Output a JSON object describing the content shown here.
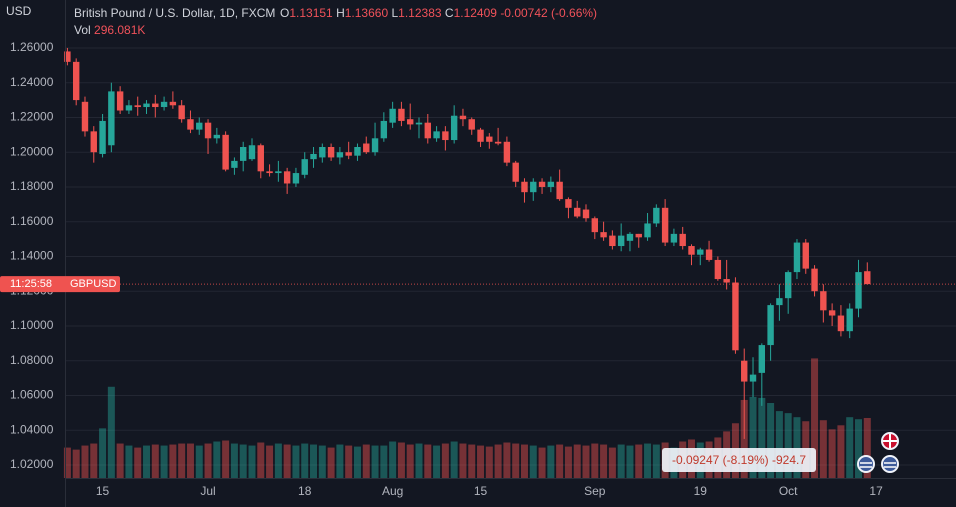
{
  "chart_data": {
    "type": "candlestick",
    "currency": "USD",
    "title": "British Pound / U.S. Dollar, 1D, FXCM",
    "ohlc_legend": [
      {
        "key": "O",
        "value": "1.13151"
      },
      {
        "key": "H",
        "value": "1.13660"
      },
      {
        "key": "L",
        "value": "1.12383"
      },
      {
        "key": "C",
        "value": "1.12409"
      }
    ],
    "change": "-0.00742 (-0.66%)",
    "volume_legend": {
      "key": "Vol",
      "value": "296.081K"
    },
    "categories": [
      null,
      null,
      null,
      null,
      "15",
      null,
      null,
      null,
      null,
      null,
      null,
      null,
      null,
      null,
      null,
      null,
      "Jul",
      null,
      null,
      null,
      null,
      null,
      null,
      null,
      null,
      null,
      null,
      "18",
      null,
      null,
      null,
      null,
      null,
      null,
      null,
      null,
      null,
      "Aug",
      null,
      null,
      null,
      null,
      null,
      null,
      null,
      null,
      null,
      "15",
      null,
      null,
      null,
      null,
      null,
      null,
      null,
      null,
      null,
      null,
      null,
      null,
      "Sep",
      null,
      null,
      null,
      null,
      null,
      null,
      null,
      null,
      null,
      null,
      null,
      "19",
      null,
      null,
      null,
      null,
      null,
      null,
      null,
      null,
      null,
      "Oct",
      null,
      null,
      null,
      null,
      null,
      null,
      null,
      null,
      null,
      "17"
    ],
    "open": [
      1.258,
      1.252,
      1.229,
      1.212,
      1.199,
      1.204,
      1.235,
      1.224,
      1.227,
      1.226,
      1.228,
      1.226,
      1.229,
      1.227,
      1.219,
      1.213,
      1.217,
      1.208,
      1.21,
      1.191,
      1.195,
      1.196,
      1.204,
      1.189,
      1.188,
      1.189,
      1.182,
      1.187,
      1.196,
      1.197,
      1.203,
      1.197,
      1.2,
      1.198,
      1.205,
      1.2,
      1.208,
      1.217,
      1.225,
      1.219,
      1.216,
      1.217,
      1.208,
      1.212,
      1.207,
      1.221,
      1.219,
      1.213,
      1.209,
      1.206,
      1.206,
      1.194,
      1.183,
      1.177,
      1.183,
      1.18,
      1.183,
      1.173,
      1.168,
      1.167,
      1.162,
      1.154,
      1.152,
      1.146,
      1.149,
      1.153,
      1.151,
      1.159,
      1.168,
      1.148,
      1.153,
      1.146,
      1.141,
      1.144,
      1.138,
      1.127,
      1.125,
      1.08,
      1.068,
      1.073,
      1.089,
      1.112,
      1.116,
      1.131,
      1.148,
      1.133,
      1.12,
      1.109,
      1.106,
      1.097,
      1.11,
      1.13151,
      null
    ],
    "high": [
      1.26,
      1.254,
      1.232,
      1.215,
      1.222,
      1.24,
      1.238,
      1.23,
      1.232,
      1.23,
      1.233,
      1.232,
      1.235,
      1.23,
      1.224,
      1.22,
      1.219,
      1.214,
      1.212,
      1.197,
      1.206,
      1.208,
      1.205,
      1.193,
      1.195,
      1.191,
      1.191,
      1.2,
      1.203,
      1.205,
      1.205,
      1.203,
      1.206,
      1.205,
      1.209,
      1.217,
      1.223,
      1.229,
      1.229,
      1.228,
      1.22,
      1.222,
      1.215,
      1.215,
      1.227,
      1.225,
      1.22,
      1.214,
      1.211,
      1.214,
      1.209,
      1.195,
      1.185,
      1.185,
      1.185,
      1.186,
      1.19,
      1.174,
      1.172,
      1.17,
      1.163,
      1.16,
      1.155,
      1.159,
      1.154,
      1.153,
      1.165,
      1.17,
      1.173,
      1.156,
      1.157,
      1.147,
      1.145,
      1.149,
      1.14,
      1.138,
      1.128,
      1.087,
      1.082,
      1.09,
      1.113,
      1.124,
      1.132,
      1.15,
      1.15,
      1.135,
      1.124,
      1.113,
      1.112,
      1.113,
      1.138,
      1.1366,
      null
    ],
    "low": [
      1.25,
      1.227,
      1.209,
      1.194,
      1.197,
      1.2,
      1.222,
      1.222,
      1.221,
      1.222,
      1.22,
      1.224,
      1.225,
      1.217,
      1.211,
      1.21,
      1.199,
      1.205,
      1.189,
      1.187,
      1.189,
      1.195,
      1.185,
      1.186,
      1.183,
      1.176,
      1.18,
      1.185,
      1.191,
      1.194,
      1.195,
      1.193,
      1.196,
      1.195,
      1.199,
      1.198,
      1.206,
      1.214,
      1.215,
      1.213,
      1.208,
      1.205,
      1.206,
      1.201,
      1.205,
      1.215,
      1.21,
      1.203,
      1.202,
      1.204,
      1.192,
      1.18,
      1.171,
      1.172,
      1.176,
      1.177,
      1.172,
      1.162,
      1.162,
      1.16,
      1.15,
      1.149,
      1.144,
      1.143,
      1.143,
      1.145,
      1.149,
      1.157,
      1.146,
      1.146,
      1.144,
      1.135,
      1.135,
      1.137,
      1.126,
      1.121,
      1.084,
      1.035,
      1.059,
      1.054,
      1.08,
      1.103,
      1.107,
      1.127,
      1.13,
      1.117,
      1.102,
      1.1,
      1.094,
      1.093,
      1.105,
      1.12383,
      null
    ],
    "close": [
      1.252,
      1.23,
      1.212,
      1.2,
      1.218,
      1.235,
      1.224,
      1.227,
      1.226,
      1.228,
      1.226,
      1.229,
      1.227,
      1.219,
      1.213,
      1.217,
      1.208,
      1.21,
      1.19,
      1.195,
      1.203,
      1.204,
      1.189,
      1.188,
      1.189,
      1.182,
      1.188,
      1.196,
      1.199,
      1.203,
      1.197,
      1.2,
      1.198,
      1.203,
      1.2,
      1.208,
      1.218,
      1.225,
      1.218,
      1.216,
      1.217,
      1.208,
      1.212,
      1.207,
      1.221,
      1.219,
      1.213,
      1.206,
      1.206,
      1.205,
      1.194,
      1.183,
      1.177,
      1.183,
      1.18,
      1.183,
      1.173,
      1.168,
      1.163,
      1.162,
      1.154,
      1.151,
      1.146,
      1.152,
      1.153,
      1.151,
      1.159,
      1.168,
      1.148,
      1.153,
      1.146,
      1.141,
      1.144,
      1.138,
      1.127,
      1.125,
      1.086,
      1.068,
      1.072,
      1.089,
      1.112,
      1.116,
      1.131,
      1.148,
      1.133,
      1.12,
      1.109,
      1.106,
      1.097,
      1.11,
      1.131,
      1.12409,
      null
    ],
    "volume": [
      150,
      140,
      160,
      170,
      245,
      450,
      170,
      160,
      150,
      160,
      165,
      160,
      165,
      170,
      170,
      160,
      170,
      180,
      185,
      170,
      165,
      160,
      175,
      160,
      170,
      165,
      160,
      170,
      165,
      160,
      150,
      165,
      160,
      155,
      165,
      160,
      160,
      180,
      175,
      165,
      170,
      165,
      160,
      170,
      180,
      170,
      165,
      160,
      155,
      165,
      175,
      170,
      165,
      160,
      150,
      160,
      165,
      155,
      165,
      160,
      170,
      165,
      150,
      165,
      160,
      165,
      170,
      165,
      175,
      150,
      180,
      190,
      175,
      180,
      200,
      230,
      270,
      385,
      400,
      395,
      370,
      330,
      320,
      300,
      280,
      590,
      285,
      240,
      260,
      300,
      290,
      296.081,
      null
    ],
    "up_color": "#26a69a",
    "down_color": "#ef5350",
    "ylim": [
      1.0125,
      1.2876
    ],
    "yticks": [
      {
        "value": 1.26,
        "label": "1.26000"
      },
      {
        "value": 1.24,
        "label": "1.24000"
      },
      {
        "value": 1.22,
        "label": "1.22000"
      },
      {
        "value": 1.2,
        "label": "1.20000"
      },
      {
        "value": 1.18,
        "label": "1.18000"
      },
      {
        "value": 1.16,
        "label": "1.16000"
      },
      {
        "value": 1.14,
        "label": "1.14000"
      },
      {
        "value": 1.12,
        "label": "1.12000"
      },
      {
        "value": 1.1,
        "label": "1.10000"
      },
      {
        "value": 1.08,
        "label": "1.08000"
      },
      {
        "value": 1.06,
        "label": "1.06000"
      },
      {
        "value": 1.04,
        "label": "1.04000"
      },
      {
        "value": 1.02,
        "label": "1.02000"
      }
    ],
    "volume_lim": [
      0,
      2358
    ],
    "grid": true,
    "price_tag": {
      "time": "11:25:58",
      "symbol": "GBPUSD"
    },
    "measure_label": "-0.09247 (-8.19%) -924.7"
  }
}
